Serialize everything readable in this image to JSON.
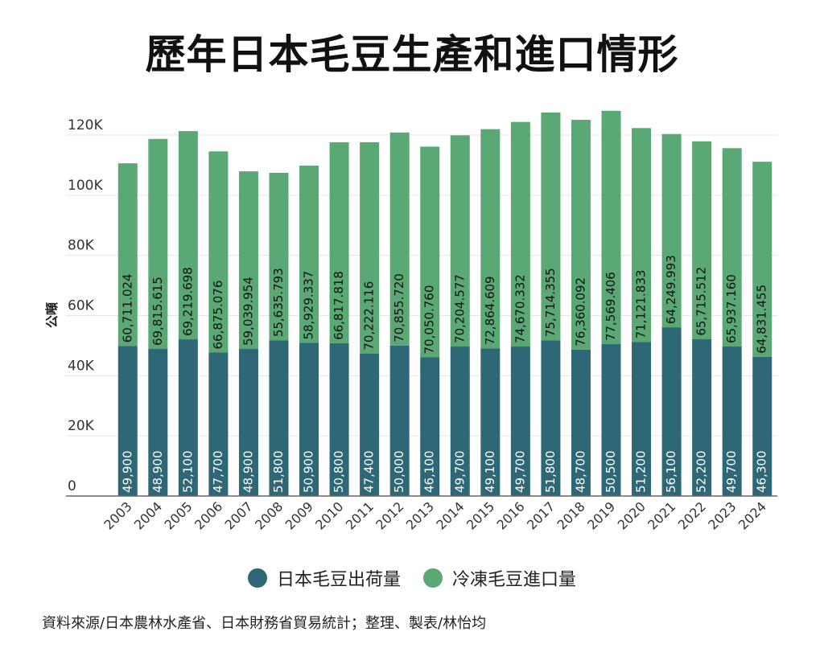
{
  "title": "歷年日本毛豆生產和進口情形",
  "source": "資料來源/日本農林水產省、日本財務省貿易統計；整理、製表/林怡均",
  "colors": {
    "domestic": "#2e6775",
    "import": "#5aa874",
    "grid": "#e6e6e6",
    "axis": "#999999"
  },
  "chart_data": {
    "type": "bar",
    "stacked": true,
    "title": "歷年日本毛豆生產和進口情形",
    "ylabel": "公噸",
    "xlabel": "",
    "ylim": [
      0,
      120000
    ],
    "yticks": [
      0,
      20000,
      40000,
      60000,
      80000,
      100000,
      120000
    ],
    "ytick_labels": [
      "0",
      "20K",
      "40K",
      "60K",
      "80K",
      "100K",
      "120K"
    ],
    "categories": [
      "2003",
      "2004",
      "2005",
      "2006",
      "2007",
      "2008",
      "2009",
      "2010",
      "2011",
      "2012",
      "2013",
      "2014",
      "2015",
      "2016",
      "2017",
      "2018",
      "2019",
      "2020",
      "2021",
      "2022",
      "2023",
      "2024"
    ],
    "series": [
      {
        "name": "日本毛豆出荷量",
        "values": [
          49900,
          48900,
          52100,
          47700,
          48900,
          51800,
          50900,
          50800,
          47400,
          50000,
          46100,
          49700,
          49100,
          49700,
          51800,
          48700,
          50500,
          51200,
          56100,
          52200,
          49700,
          46300
        ],
        "labels": [
          "49,900",
          "48,900",
          "52,100",
          "47,700",
          "48,900",
          "51,800",
          "50,900",
          "50,800",
          "47,400",
          "50,000",
          "46,100",
          "49,700",
          "49,100",
          "49,700",
          "51,800",
          "48,700",
          "50,500",
          "51,200",
          "56,100",
          "52,200",
          "49,700",
          "46,300"
        ]
      },
      {
        "name": "冷凍毛豆進口量",
        "values": [
          60711.024,
          69815.615,
          69219.698,
          66875.076,
          59039.954,
          55635.793,
          58929.337,
          66817.818,
          70222.116,
          70855.72,
          70050.76,
          70204.577,
          72864.609,
          74670.332,
          75714.355,
          76360.092,
          77569.406,
          71121.833,
          64249.993,
          65715.512,
          65937.16,
          64831.455
        ],
        "labels": [
          "60,711.024",
          "69,815.615",
          "69,219.698",
          "66,875.076",
          "59,039.954",
          "55,635.793",
          "58,929.337",
          "66,817.818",
          "70,222.116",
          "70,855.720",
          "70,050.760",
          "70,204.577",
          "72,864.609",
          "74,670.332",
          "75,714.355",
          "76,360.092",
          "77,569.406",
          "71,121.833",
          "64,249.993",
          "65,715.512",
          "65,937.160",
          "64,831.455"
        ]
      }
    ],
    "legend": "bottom"
  }
}
